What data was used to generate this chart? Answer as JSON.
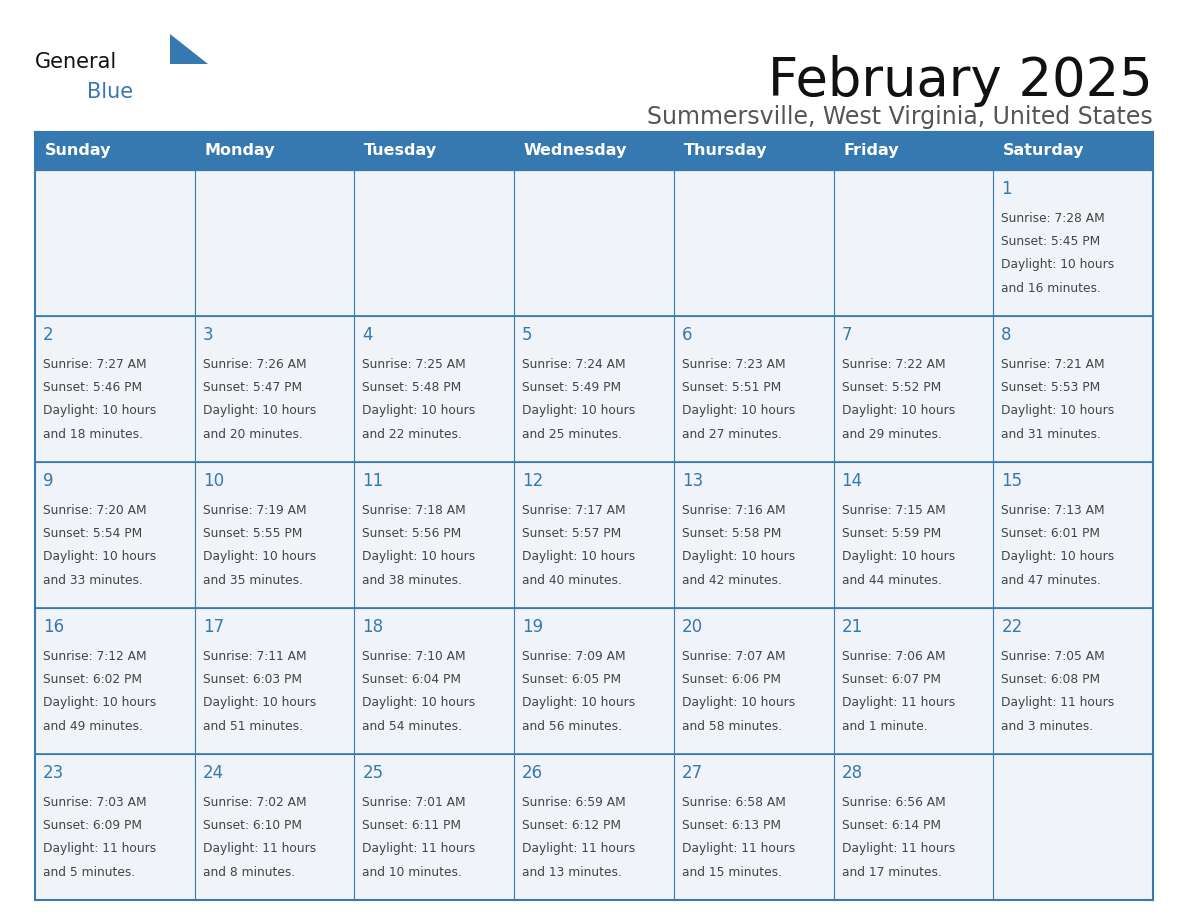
{
  "title": "February 2025",
  "subtitle": "Summersville, West Virginia, United States",
  "header_bg": "#3678B0",
  "header_text_color": "#FFFFFF",
  "cell_bg": "#F0F4F8",
  "cell_bg_white": "#FFFFFF",
  "cell_border_color": "#3678B0",
  "day_number_color": "#3678B0",
  "cell_text_color": "#444444",
  "days_of_week": [
    "Sunday",
    "Monday",
    "Tuesday",
    "Wednesday",
    "Thursday",
    "Friday",
    "Saturday"
  ],
  "calendar_data": [
    [
      null,
      null,
      null,
      null,
      null,
      null,
      {
        "day": 1,
        "sunrise": "7:28 AM",
        "sunset": "5:45 PM",
        "daylight": "10 hours\nand 16 minutes."
      }
    ],
    [
      {
        "day": 2,
        "sunrise": "7:27 AM",
        "sunset": "5:46 PM",
        "daylight": "10 hours\nand 18 minutes."
      },
      {
        "day": 3,
        "sunrise": "7:26 AM",
        "sunset": "5:47 PM",
        "daylight": "10 hours\nand 20 minutes."
      },
      {
        "day": 4,
        "sunrise": "7:25 AM",
        "sunset": "5:48 PM",
        "daylight": "10 hours\nand 22 minutes."
      },
      {
        "day": 5,
        "sunrise": "7:24 AM",
        "sunset": "5:49 PM",
        "daylight": "10 hours\nand 25 minutes."
      },
      {
        "day": 6,
        "sunrise": "7:23 AM",
        "sunset": "5:51 PM",
        "daylight": "10 hours\nand 27 minutes."
      },
      {
        "day": 7,
        "sunrise": "7:22 AM",
        "sunset": "5:52 PM",
        "daylight": "10 hours\nand 29 minutes."
      },
      {
        "day": 8,
        "sunrise": "7:21 AM",
        "sunset": "5:53 PM",
        "daylight": "10 hours\nand 31 minutes."
      }
    ],
    [
      {
        "day": 9,
        "sunrise": "7:20 AM",
        "sunset": "5:54 PM",
        "daylight": "10 hours\nand 33 minutes."
      },
      {
        "day": 10,
        "sunrise": "7:19 AM",
        "sunset": "5:55 PM",
        "daylight": "10 hours\nand 35 minutes."
      },
      {
        "day": 11,
        "sunrise": "7:18 AM",
        "sunset": "5:56 PM",
        "daylight": "10 hours\nand 38 minutes."
      },
      {
        "day": 12,
        "sunrise": "7:17 AM",
        "sunset": "5:57 PM",
        "daylight": "10 hours\nand 40 minutes."
      },
      {
        "day": 13,
        "sunrise": "7:16 AM",
        "sunset": "5:58 PM",
        "daylight": "10 hours\nand 42 minutes."
      },
      {
        "day": 14,
        "sunrise": "7:15 AM",
        "sunset": "5:59 PM",
        "daylight": "10 hours\nand 44 minutes."
      },
      {
        "day": 15,
        "sunrise": "7:13 AM",
        "sunset": "6:01 PM",
        "daylight": "10 hours\nand 47 minutes."
      }
    ],
    [
      {
        "day": 16,
        "sunrise": "7:12 AM",
        "sunset": "6:02 PM",
        "daylight": "10 hours\nand 49 minutes."
      },
      {
        "day": 17,
        "sunrise": "7:11 AM",
        "sunset": "6:03 PM",
        "daylight": "10 hours\nand 51 minutes."
      },
      {
        "day": 18,
        "sunrise": "7:10 AM",
        "sunset": "6:04 PM",
        "daylight": "10 hours\nand 54 minutes."
      },
      {
        "day": 19,
        "sunrise": "7:09 AM",
        "sunset": "6:05 PM",
        "daylight": "10 hours\nand 56 minutes."
      },
      {
        "day": 20,
        "sunrise": "7:07 AM",
        "sunset": "6:06 PM",
        "daylight": "10 hours\nand 58 minutes."
      },
      {
        "day": 21,
        "sunrise": "7:06 AM",
        "sunset": "6:07 PM",
        "daylight": "11 hours\nand 1 minute."
      },
      {
        "day": 22,
        "sunrise": "7:05 AM",
        "sunset": "6:08 PM",
        "daylight": "11 hours\nand 3 minutes."
      }
    ],
    [
      {
        "day": 23,
        "sunrise": "7:03 AM",
        "sunset": "6:09 PM",
        "daylight": "11 hours\nand 5 minutes."
      },
      {
        "day": 24,
        "sunrise": "7:02 AM",
        "sunset": "6:10 PM",
        "daylight": "11 hours\nand 8 minutes."
      },
      {
        "day": 25,
        "sunrise": "7:01 AM",
        "sunset": "6:11 PM",
        "daylight": "11 hours\nand 10 minutes."
      },
      {
        "day": 26,
        "sunrise": "6:59 AM",
        "sunset": "6:12 PM",
        "daylight": "11 hours\nand 13 minutes."
      },
      {
        "day": 27,
        "sunrise": "6:58 AM",
        "sunset": "6:13 PM",
        "daylight": "11 hours\nand 15 minutes."
      },
      {
        "day": 28,
        "sunrise": "6:56 AM",
        "sunset": "6:14 PM",
        "daylight": "11 hours\nand 17 minutes."
      },
      null
    ]
  ],
  "logo_general_color": "#111111",
  "logo_blue_color": "#3678B0",
  "logo_triangle_color": "#3678B0",
  "title_color": "#111111",
  "subtitle_color": "#555555"
}
